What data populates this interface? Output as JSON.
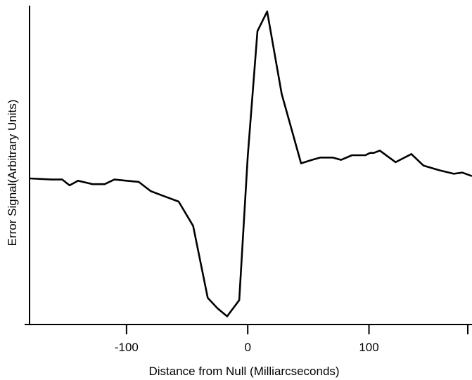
{
  "chart_data": {
    "type": "line",
    "title": "",
    "xlabel": "Distance from Null (Milliarcseconds)",
    "ylabel": "Error Signal(Arbitrary Units)",
    "xlim": [
      -180,
      185
    ],
    "ylim": [
      -1.2,
      1.55
    ],
    "grid": false,
    "legend": "none",
    "xticks": [
      {
        "value": -100,
        "label": "-100"
      },
      {
        "value": 0,
        "label": "0"
      },
      {
        "value": 100,
        "label": "100"
      }
    ],
    "line_color": "#000000",
    "series": [
      {
        "x": [
          -180,
          -162,
          -153,
          -147,
          -140,
          -128,
          -118,
          -110,
          -100,
          -90,
          -80,
          -70,
          -57,
          -45,
          -33,
          -25,
          -17,
          -7,
          0,
          8,
          16,
          28,
          44,
          53,
          60,
          70,
          77,
          86,
          97,
          101,
          104,
          109,
          122,
          135,
          145,
          158,
          170,
          177,
          185
        ],
        "y": [
          0.06,
          0.05,
          0.05,
          0.0,
          0.04,
          0.01,
          0.01,
          0.05,
          0.04,
          0.03,
          -0.05,
          -0.09,
          -0.14,
          -0.35,
          -0.97,
          -1.06,
          -1.13,
          -0.99,
          0.25,
          1.33,
          1.5,
          0.79,
          0.19,
          0.22,
          0.24,
          0.24,
          0.22,
          0.26,
          0.26,
          0.28,
          0.28,
          0.3,
          0.2,
          0.27,
          0.17,
          0.13,
          0.1,
          0.11,
          0.08
        ]
      }
    ]
  }
}
